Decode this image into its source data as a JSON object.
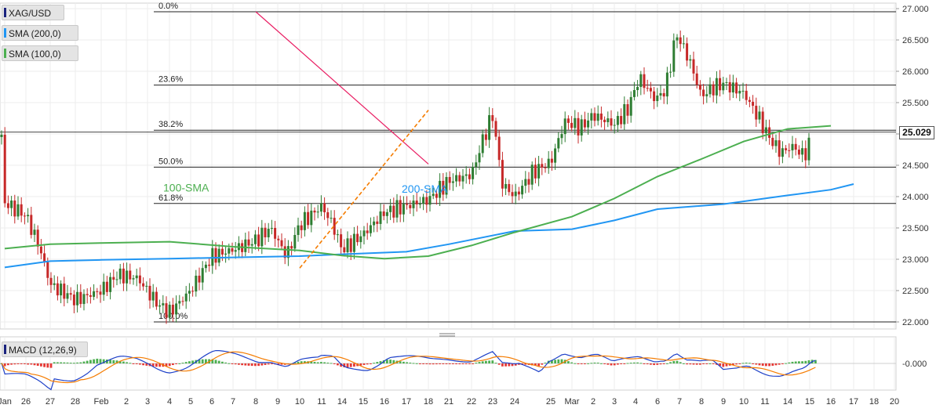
{
  "instrument": "XAG/USD",
  "indicators": {
    "sma200_label": "SMA (200,0)",
    "sma100_label": "SMA (100,0)",
    "macd_label": "MACD (12,26,9)"
  },
  "current_price": "25.029",
  "colors": {
    "sma100": "#4caf50",
    "sma200": "#2196f3",
    "up_candle": "#2e7d32",
    "down_candle": "#c62828",
    "resistance": "#e91e63",
    "support": "#f57c00",
    "macd_line": "#1e40c8",
    "signal_line": "#f57c00",
    "hist_pos": "#4caf50",
    "hist_neg": "#e53935"
  },
  "chart_data": [
    {
      "type": "candlestick",
      "title": "XAG/USD",
      "ylim": [
        22.0,
        27.0
      ],
      "y_ticks": [
        "27.000",
        "26.500",
        "26.000",
        "25.500",
        "25.000",
        "24.500",
        "24.000",
        "23.500",
        "23.000",
        "22.500",
        "22.000"
      ],
      "x_ticks": [
        "Jan",
        "26",
        "27",
        "28",
        "Feb",
        "2",
        "3",
        "4",
        "5",
        "6",
        "7",
        "8",
        "9",
        "10",
        "11",
        "14",
        "15",
        "16",
        "17",
        "18",
        "21",
        "22",
        "23",
        "24",
        "25",
        "Mar",
        "2",
        "3",
        "4",
        "6",
        "7",
        "8",
        "9",
        "10",
        "11",
        "14",
        "15",
        "16",
        "17",
        "18",
        "20"
      ],
      "fib_levels": [
        {
          "label": "0.0%",
          "value": 26.95
        },
        {
          "label": "23.6%",
          "value": 25.78
        },
        {
          "label": "38.2%",
          "value": 25.06
        },
        {
          "label": "50.0%",
          "value": 24.47
        },
        {
          "label": "61.8%",
          "value": 23.89
        },
        {
          "label": "100.0%",
          "value": 22.0
        }
      ],
      "annotations": [
        {
          "text": "100-SMA",
          "x": "Mar 3",
          "y": 24.13
        },
        {
          "text": "200-SMA",
          "x": "Mar 16",
          "y": 24.11
        }
      ],
      "sma100": {
        "name": "100-SMA",
        "points": [
          [
            "Jan",
            23.17
          ],
          [
            "27",
            23.24
          ],
          [
            "Feb",
            23.26
          ],
          [
            "4",
            23.28
          ],
          [
            "7",
            23.2
          ],
          [
            "10",
            23.14
          ],
          [
            "14",
            23.06
          ],
          [
            "16",
            23.01
          ],
          [
            "18",
            23.05
          ],
          [
            "22",
            23.22
          ],
          [
            "24",
            23.43
          ],
          [
            "Mar",
            23.68
          ],
          [
            "3",
            23.97
          ],
          [
            "6",
            24.32
          ],
          [
            "8",
            24.6
          ],
          [
            "10",
            24.88
          ],
          [
            "14",
            25.08
          ],
          [
            "16",
            25.13
          ]
        ]
      },
      "sma200": {
        "name": "200-SMA",
        "points": [
          [
            "Jan",
            22.87
          ],
          [
            "27",
            22.97
          ],
          [
            "Feb",
            22.99
          ],
          [
            "4",
            23.01
          ],
          [
            "7",
            23.03
          ],
          [
            "10",
            23.05
          ],
          [
            "14",
            23.08
          ],
          [
            "17",
            23.12
          ],
          [
            "21",
            23.24
          ],
          [
            "24",
            23.45
          ],
          [
            "Mar",
            23.48
          ],
          [
            "3",
            23.62
          ],
          [
            "6",
            23.8
          ],
          [
            "9",
            23.88
          ],
          [
            "14",
            24.02
          ],
          [
            "16",
            24.11
          ],
          [
            "17",
            24.2
          ]
        ]
      },
      "resistance_line": [
        [
          "8",
          26.95
        ],
        [
          "18",
          24.52
        ]
      ],
      "support_line": [
        [
          "10",
          22.86
        ],
        [
          "18",
          25.38
        ]
      ]
    },
    {
      "type": "macd",
      "title": "MACD (12,26,9)",
      "y_ticks": [
        "-0.000"
      ]
    }
  ]
}
